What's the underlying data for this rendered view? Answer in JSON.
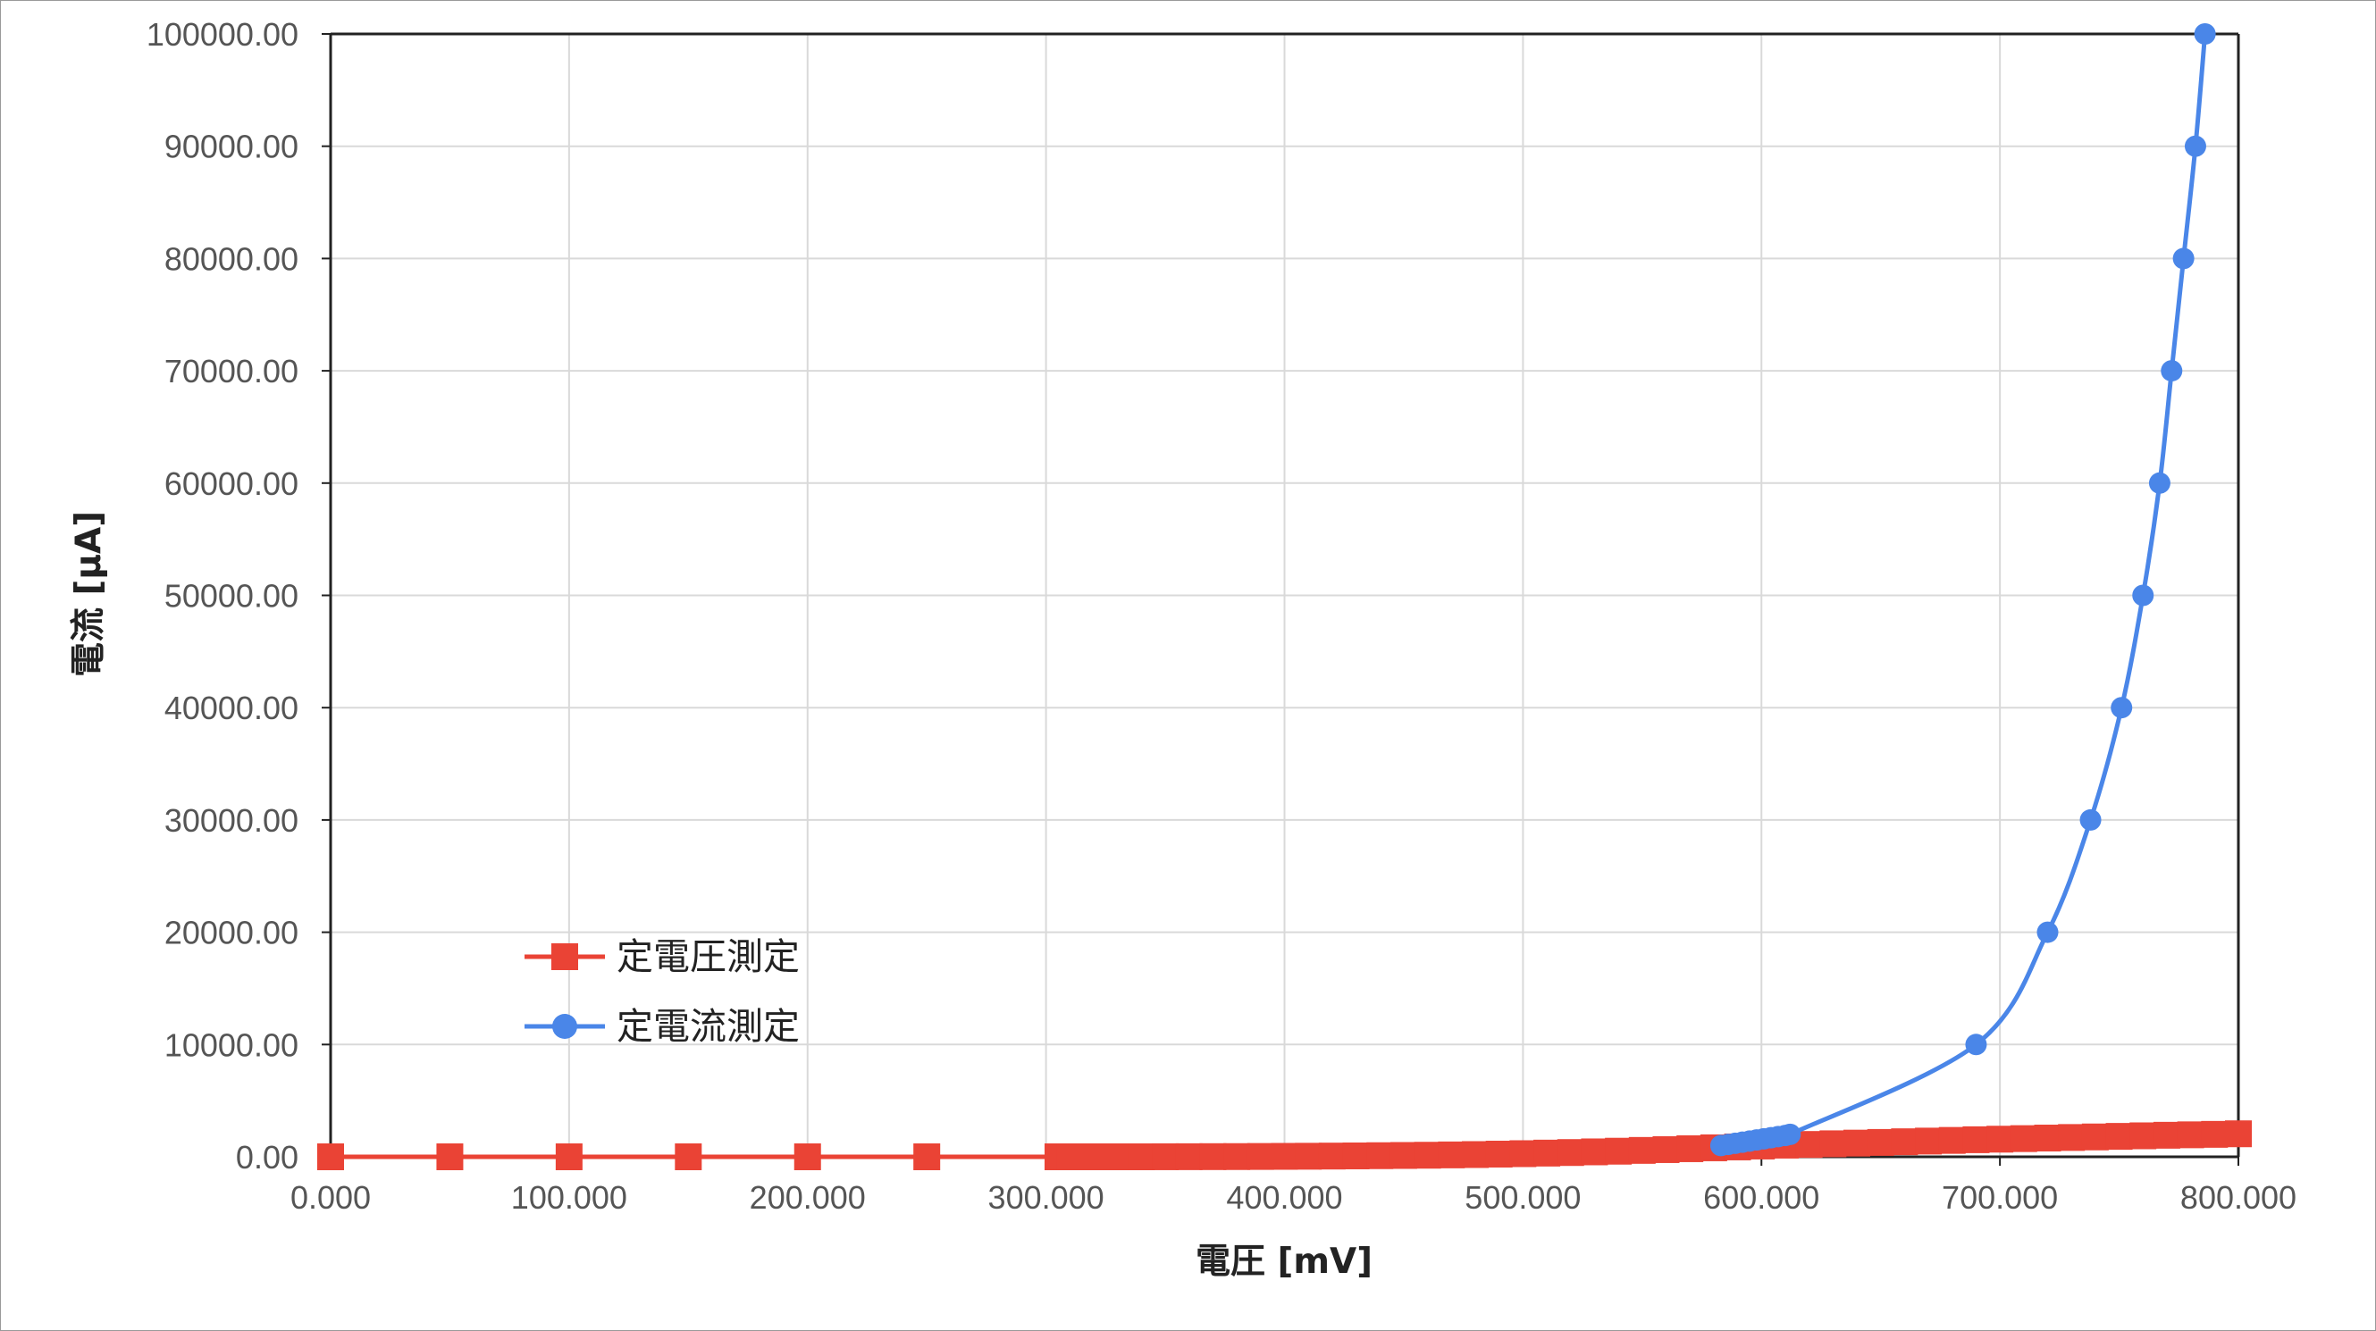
{
  "chart_data": {
    "type": "scatter",
    "title": "",
    "xlabel": "電圧 [mV]",
    "ylabel": "電流 [μA]",
    "xlim": [
      0,
      800
    ],
    "ylim": [
      0,
      100000
    ],
    "xticks": [
      0,
      100,
      200,
      300,
      400,
      500,
      600,
      700,
      800
    ],
    "yticks": [
      0,
      10000,
      20000,
      30000,
      40000,
      50000,
      60000,
      70000,
      80000,
      90000,
      100000
    ],
    "xtick_labels": [
      "0.000",
      "100.000",
      "200.000",
      "300.000",
      "400.000",
      "500.000",
      "600.000",
      "700.000",
      "800.000"
    ],
    "ytick_labels": [
      "0.00",
      "10000.00",
      "20000.00",
      "30000.00",
      "40000.00",
      "50000.00",
      "60000.00",
      "70000.00",
      "80000.00",
      "90000.00",
      "100000.00"
    ],
    "grid": true,
    "legend_position": "lower-left",
    "series": [
      {
        "name": "定電圧測定",
        "color": "#ea4335",
        "marker": "square",
        "x": [
          0,
          50,
          100,
          150,
          200,
          250,
          305,
          310,
          320,
          330,
          340,
          350,
          360,
          370,
          380,
          390,
          400,
          410,
          420,
          430,
          440,
          450,
          460,
          470,
          480,
          490,
          500,
          510,
          520,
          530,
          540,
          550,
          560,
          570,
          580,
          590,
          600,
          610,
          620,
          630,
          640,
          650,
          660,
          670,
          680,
          690,
          700,
          710,
          720,
          730,
          740,
          750,
          760,
          770,
          780,
          790,
          800
        ],
        "y": [
          0,
          0,
          0,
          0,
          0,
          0,
          0,
          0,
          0,
          0,
          0,
          5,
          10,
          15,
          20,
          30,
          40,
          50,
          65,
          80,
          100,
          120,
          140,
          170,
          200,
          240,
          280,
          330,
          380,
          440,
          500,
          570,
          640,
          720,
          800,
          880,
          960,
          1040,
          1100,
          1160,
          1220,
          1280,
          1340,
          1400,
          1460,
          1520,
          1570,
          1620,
          1670,
          1720,
          1770,
          1820,
          1870,
          1920,
          1960,
          2000,
          2050
        ]
      },
      {
        "name": "定電流測定",
        "color": "#4a86e8",
        "marker": "circle",
        "x": [
          583,
          586,
          589,
          592,
          595,
          598,
          601,
          604,
          607,
          610,
          612,
          690,
          720,
          738,
          751,
          760,
          767,
          772,
          777,
          782,
          786
        ],
        "y": [
          1000,
          1100,
          1200,
          1300,
          1400,
          1500,
          1600,
          1700,
          1800,
          1900,
          2000,
          10000,
          20000,
          30000,
          40000,
          50000,
          60000,
          70000,
          80000,
          90000,
          100000
        ]
      }
    ]
  }
}
